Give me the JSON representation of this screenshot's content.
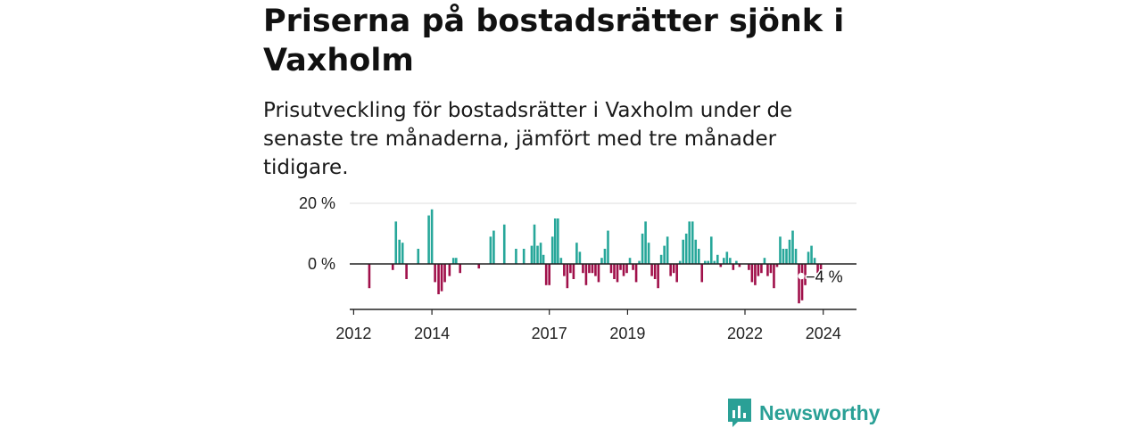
{
  "title": "Priserna på bostadsrätter sjönk i Vaxholm",
  "subtitle": "Prisutveckling för bostadsrätter i Vaxholm under de senaste tre månaderna, jämfört med tre månader tidigare.",
  "brand": "Newsworthy",
  "colors": {
    "positive": "#27a79a",
    "negative": "#a0104a",
    "grid": "#dddddd",
    "axis": "#222222",
    "brand": "#2aa096"
  },
  "chart_data": {
    "type": "bar",
    "y_ticks": [
      {
        "value": 20,
        "label": "20 %"
      },
      {
        "value": 0,
        "label": "0 %"
      }
    ],
    "ylim": [
      -14,
      20
    ],
    "xlim": [
      2011.9,
      2024.85
    ],
    "x_ticks": [
      {
        "value": 2012,
        "label": "2012"
      },
      {
        "value": 2014,
        "label": "2014"
      },
      {
        "value": 2017,
        "label": "2017"
      },
      {
        "value": 2019,
        "label": "2019"
      },
      {
        "value": 2022,
        "label": "2022"
      },
      {
        "value": 2024,
        "label": "2024"
      }
    ],
    "last_label": "−4 %",
    "bars": [
      {
        "t": 2012.4,
        "v": -8
      },
      {
        "t": 2013.0,
        "v": -2
      },
      {
        "t": 2013.08,
        "v": 14
      },
      {
        "t": 2013.17,
        "v": 8
      },
      {
        "t": 2013.25,
        "v": 7
      },
      {
        "t": 2013.35,
        "v": -5
      },
      {
        "t": 2013.65,
        "v": 5
      },
      {
        "t": 2013.92,
        "v": 16
      },
      {
        "t": 2014.0,
        "v": 18
      },
      {
        "t": 2014.08,
        "v": -6
      },
      {
        "t": 2014.17,
        "v": -10
      },
      {
        "t": 2014.25,
        "v": -9
      },
      {
        "t": 2014.33,
        "v": -6
      },
      {
        "t": 2014.45,
        "v": -4
      },
      {
        "t": 2014.55,
        "v": 2
      },
      {
        "t": 2014.62,
        "v": 2
      },
      {
        "t": 2014.72,
        "v": -3
      },
      {
        "t": 2015.2,
        "v": -1.5
      },
      {
        "t": 2015.5,
        "v": 9
      },
      {
        "t": 2015.58,
        "v": 11
      },
      {
        "t": 2015.85,
        "v": 13
      },
      {
        "t": 2016.15,
        "v": 5
      },
      {
        "t": 2016.35,
        "v": 5
      },
      {
        "t": 2016.55,
        "v": 6
      },
      {
        "t": 2016.62,
        "v": 13
      },
      {
        "t": 2016.7,
        "v": 6
      },
      {
        "t": 2016.78,
        "v": 7
      },
      {
        "t": 2016.85,
        "v": 3
      },
      {
        "t": 2016.92,
        "v": -7
      },
      {
        "t": 2017.0,
        "v": -7
      },
      {
        "t": 2017.08,
        "v": 9
      },
      {
        "t": 2017.15,
        "v": 15
      },
      {
        "t": 2017.22,
        "v": 15
      },
      {
        "t": 2017.3,
        "v": 2
      },
      {
        "t": 2017.38,
        "v": -4
      },
      {
        "t": 2017.46,
        "v": -8
      },
      {
        "t": 2017.54,
        "v": -3
      },
      {
        "t": 2017.62,
        "v": -5
      },
      {
        "t": 2017.7,
        "v": 7
      },
      {
        "t": 2017.78,
        "v": 4
      },
      {
        "t": 2017.86,
        "v": -3
      },
      {
        "t": 2017.94,
        "v": -7
      },
      {
        "t": 2018.02,
        "v": -3
      },
      {
        "t": 2018.1,
        "v": -3
      },
      {
        "t": 2018.18,
        "v": -4
      },
      {
        "t": 2018.26,
        "v": -6
      },
      {
        "t": 2018.34,
        "v": 2
      },
      {
        "t": 2018.42,
        "v": 5
      },
      {
        "t": 2018.5,
        "v": 11
      },
      {
        "t": 2018.58,
        "v": -3
      },
      {
        "t": 2018.66,
        "v": -5
      },
      {
        "t": 2018.74,
        "v": -6
      },
      {
        "t": 2018.82,
        "v": -2
      },
      {
        "t": 2018.9,
        "v": -4
      },
      {
        "t": 2018.98,
        "v": -3
      },
      {
        "t": 2019.06,
        "v": 2
      },
      {
        "t": 2019.14,
        "v": -2
      },
      {
        "t": 2019.22,
        "v": -6
      },
      {
        "t": 2019.3,
        "v": 1
      },
      {
        "t": 2019.38,
        "v": 10
      },
      {
        "t": 2019.46,
        "v": 14
      },
      {
        "t": 2019.54,
        "v": 7
      },
      {
        "t": 2019.62,
        "v": -4
      },
      {
        "t": 2019.7,
        "v": -5
      },
      {
        "t": 2019.78,
        "v": -8
      },
      {
        "t": 2019.86,
        "v": 3
      },
      {
        "t": 2019.94,
        "v": 6
      },
      {
        "t": 2020.02,
        "v": 9
      },
      {
        "t": 2020.1,
        "v": -4
      },
      {
        "t": 2020.18,
        "v": -3
      },
      {
        "t": 2020.26,
        "v": -6
      },
      {
        "t": 2020.34,
        "v": 1
      },
      {
        "t": 2020.42,
        "v": 8
      },
      {
        "t": 2020.5,
        "v": 10
      },
      {
        "t": 2020.58,
        "v": 14
      },
      {
        "t": 2020.66,
        "v": 14
      },
      {
        "t": 2020.74,
        "v": 8
      },
      {
        "t": 2020.82,
        "v": 5
      },
      {
        "t": 2020.9,
        "v": -6
      },
      {
        "t": 2020.98,
        "v": 1
      },
      {
        "t": 2021.06,
        "v": 1
      },
      {
        "t": 2021.14,
        "v": 9
      },
      {
        "t": 2021.22,
        "v": 1
      },
      {
        "t": 2021.3,
        "v": 3
      },
      {
        "t": 2021.38,
        "v": -1
      },
      {
        "t": 2021.46,
        "v": 2
      },
      {
        "t": 2021.54,
        "v": 4
      },
      {
        "t": 2021.62,
        "v": 2
      },
      {
        "t": 2021.7,
        "v": -2
      },
      {
        "t": 2021.78,
        "v": 1
      },
      {
        "t": 2021.86,
        "v": -1
      },
      {
        "t": 2022.1,
        "v": -2
      },
      {
        "t": 2022.18,
        "v": -6
      },
      {
        "t": 2022.26,
        "v": -7
      },
      {
        "t": 2022.34,
        "v": -4
      },
      {
        "t": 2022.42,
        "v": -3
      },
      {
        "t": 2022.5,
        "v": 2
      },
      {
        "t": 2022.58,
        "v": -4
      },
      {
        "t": 2022.66,
        "v": -3
      },
      {
        "t": 2022.74,
        "v": -8
      },
      {
        "t": 2022.82,
        "v": -1
      },
      {
        "t": 2022.9,
        "v": 9
      },
      {
        "t": 2022.98,
        "v": 5
      },
      {
        "t": 2023.06,
        "v": 5
      },
      {
        "t": 2023.14,
        "v": 8
      },
      {
        "t": 2023.22,
        "v": 11
      },
      {
        "t": 2023.3,
        "v": 5
      },
      {
        "t": 2023.38,
        "v": -13
      },
      {
        "t": 2023.46,
        "v": -12
      },
      {
        "t": 2023.54,
        "v": -7
      },
      {
        "t": 2023.62,
        "v": 4
      },
      {
        "t": 2023.7,
        "v": 6
      },
      {
        "t": 2023.78,
        "v": 2
      },
      {
        "t": 2023.86,
        "v": -3
      },
      {
        "t": 2023.94,
        "v": -4
      }
    ]
  }
}
